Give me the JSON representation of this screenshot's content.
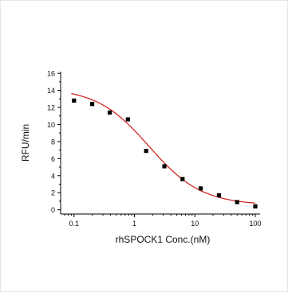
{
  "chart_data": {
    "type": "scatter",
    "xlabel": "rhSPOCK1 Conc.(nM)",
    "ylabel": "RFU/min",
    "x_scale": "log",
    "xlim": [
      0.06,
      120
    ],
    "ylim": [
      -0.5,
      16.2
    ],
    "x_ticks": [
      0.1,
      1,
      10,
      100
    ],
    "x_tick_labels": [
      "0.1",
      "1",
      "10",
      "100"
    ],
    "y_ticks": [
      0,
      2,
      4,
      6,
      8,
      10,
      12,
      14,
      16
    ],
    "y_tick_labels": [
      "0",
      "2",
      "4",
      "6",
      "8",
      "10",
      "12",
      "14",
      "16"
    ],
    "series": [
      {
        "type": "scatter",
        "color": "#000000",
        "points": [
          {
            "x": 0.1,
            "y": 12.8
          },
          {
            "x": 0.2,
            "y": 12.4
          },
          {
            "x": 0.39,
            "y": 11.4
          },
          {
            "x": 0.78,
            "y": 10.6
          },
          {
            "x": 1.56,
            "y": 6.9
          },
          {
            "x": 3.13,
            "y": 5.1
          },
          {
            "x": 6.25,
            "y": 3.6
          },
          {
            "x": 12.5,
            "y": 2.5
          },
          {
            "x": 25,
            "y": 1.7
          },
          {
            "x": 50,
            "y": 0.9
          },
          {
            "x": 100,
            "y": 0.4
          }
        ]
      },
      {
        "type": "line",
        "color": "#d11a1a",
        "fit": {
          "model": "4PL",
          "top": 14.3,
          "bottom": 0.55,
          "ec50": 1.75,
          "hill": 1.0
        }
      }
    ],
    "grid": false,
    "legend": "none"
  }
}
